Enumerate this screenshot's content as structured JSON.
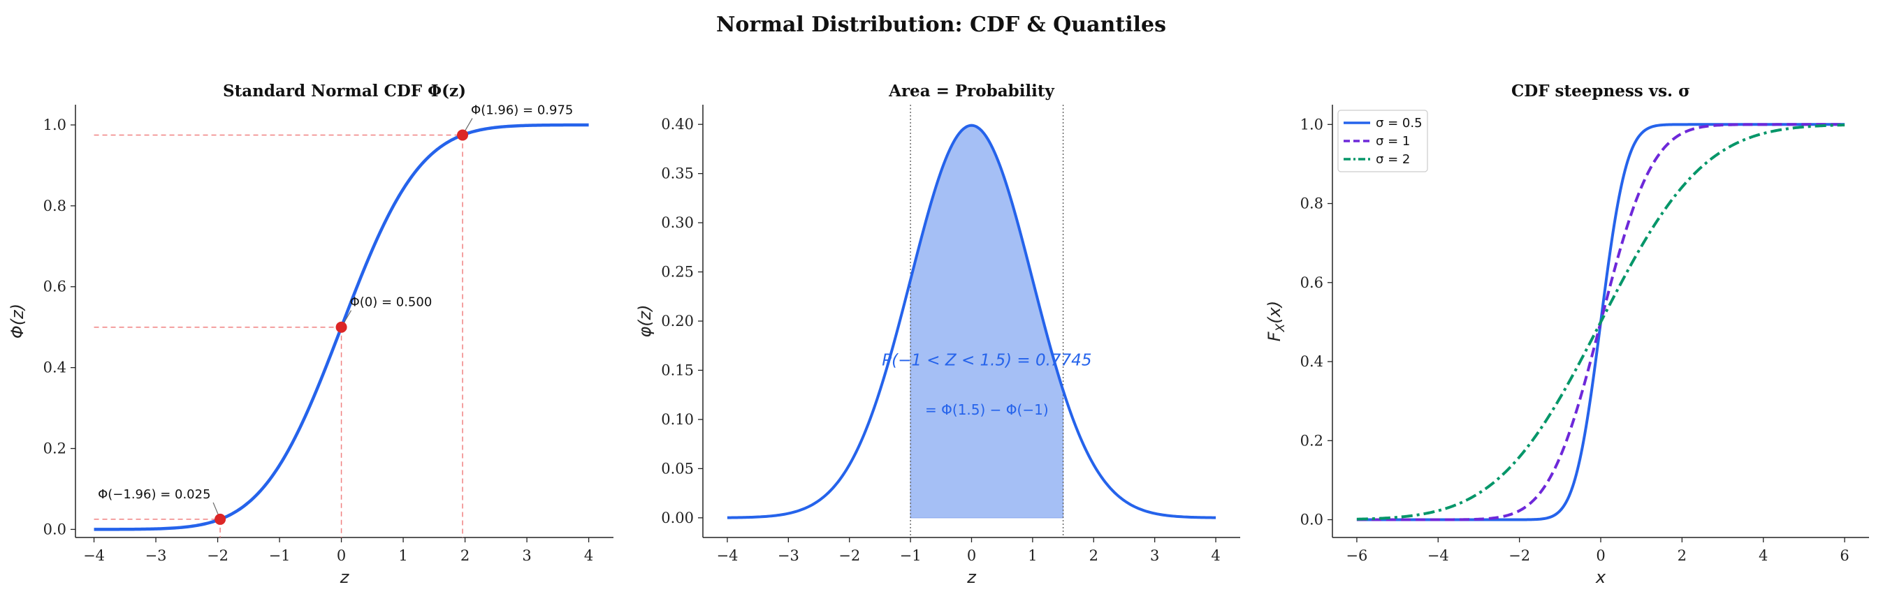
{
  "figure": {
    "suptitle": "Normal Distribution: CDF & Quantiles"
  },
  "colors": {
    "blue": "#2563eb",
    "purple": "#6d28d9",
    "green": "#059669",
    "red_dot": "#dc2626",
    "guide_red": "#f08080",
    "fill_blue": "#a5bff5"
  },
  "chart_data": [
    {
      "type": "line",
      "title": "Standard Normal CDF Φ(z)",
      "xlabel": "z",
      "ylabel": "Φ(z)",
      "xlim": [
        -4.3,
        4.4
      ],
      "ylim": [
        -0.02,
        1.05
      ],
      "xticks": [
        -4,
        -3,
        -2,
        -1,
        0,
        1,
        2,
        3,
        4
      ],
      "xtick_labels": [
        "−4",
        "−3",
        "−2",
        "−1",
        "0",
        "1",
        "2",
        "3",
        "4"
      ],
      "yticks": [
        0.0,
        0.2,
        0.4,
        0.6,
        0.8,
        1.0
      ],
      "ytick_labels": [
        "0.0",
        "0.2",
        "0.4",
        "0.6",
        "0.8",
        "1.0"
      ],
      "series": [
        {
          "function": "standard_normal_cdf",
          "x_range": [
            -4,
            4
          ],
          "color": "#2563eb"
        }
      ],
      "points": [
        {
          "x": -1.96,
          "y": 0.025,
          "label": "Φ(−1.96) = 0.025"
        },
        {
          "x": 0,
          "y": 0.5,
          "label": "Φ(0) = 0.500"
        },
        {
          "x": 1.96,
          "y": 0.975,
          "label": "Φ(1.96) = 0.975"
        }
      ]
    },
    {
      "type": "area",
      "title": "Area = Probability",
      "xlabel": "z",
      "ylabel": "φ(z)",
      "xlim": [
        -4.4,
        4.4
      ],
      "ylim": [
        -0.02,
        0.42
      ],
      "xticks": [
        -4,
        -3,
        -2,
        -1,
        0,
        1,
        2,
        3,
        4
      ],
      "xtick_labels": [
        "−4",
        "−3",
        "−2",
        "−1",
        "0",
        "1",
        "2",
        "3",
        "4"
      ],
      "yticks": [
        0.0,
        0.05,
        0.1,
        0.15,
        0.2,
        0.25,
        0.3,
        0.35,
        0.4
      ],
      "ytick_labels": [
        "0.00",
        "0.05",
        "0.10",
        "0.15",
        "0.20",
        "0.25",
        "0.30",
        "0.35",
        "0.40"
      ],
      "series": [
        {
          "function": "standard_normal_pdf",
          "x_range": [
            -4,
            4
          ],
          "color": "#2563eb"
        }
      ],
      "shaded_interval": [
        -1,
        1.5
      ],
      "annotations": [
        {
          "x": 0.25,
          "y": 0.155,
          "text": "P(−1 < Z < 1.5) = 0.7745"
        },
        {
          "x": 0.25,
          "y": 0.105,
          "text": "= Φ(1.5) − Φ(−1)"
        }
      ]
    },
    {
      "type": "line",
      "title": "CDF steepness vs. σ",
      "xlabel": "x",
      "ylabel": "F_X(x)",
      "xlim": [
        -6.6,
        6.6
      ],
      "ylim": [
        -0.045,
        1.05
      ],
      "xticks": [
        -6,
        -4,
        -2,
        0,
        2,
        4,
        6
      ],
      "xtick_labels": [
        "−6",
        "−4",
        "−2",
        "0",
        "2",
        "4",
        "6"
      ],
      "yticks": [
        0.0,
        0.2,
        0.4,
        0.6,
        0.8,
        1.0
      ],
      "ytick_labels": [
        "0.0",
        "0.2",
        "0.4",
        "0.6",
        "0.8",
        "1.0"
      ],
      "legend_position": "top-left",
      "series": [
        {
          "name": "σ = 0.5",
          "sigma": 0.5,
          "color": "#2563eb",
          "style": "solid"
        },
        {
          "name": "σ = 1",
          "sigma": 1,
          "color": "#6d28d9",
          "style": "dashed"
        },
        {
          "name": "σ = 2",
          "sigma": 2,
          "color": "#059669",
          "style": "dashdot"
        }
      ]
    }
  ]
}
